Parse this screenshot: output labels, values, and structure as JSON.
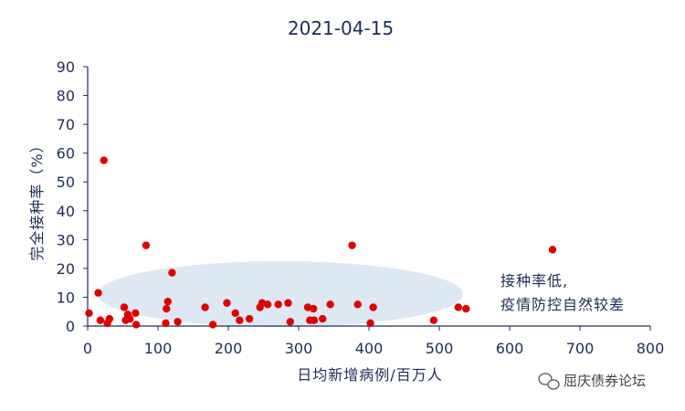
{
  "chart_data": {
    "type": "scatter",
    "title": "2021-04-15",
    "xlabel": "日均新增病例/百万人",
    "ylabel": "完全接种率（%）",
    "xlim": [
      0,
      800
    ],
    "ylim": [
      0,
      90
    ],
    "xticks": [
      "0",
      "100",
      "200",
      "300",
      "400",
      "500",
      "600",
      "700",
      "800"
    ],
    "yticks": [
      "0",
      "10",
      "20",
      "30",
      "40",
      "50",
      "60",
      "70",
      "80",
      "90"
    ],
    "grid": false,
    "legend": "none",
    "annotation": [
      "接种率低,",
      "疫情防控自然较差"
    ],
    "colors": {
      "point": "#e00000",
      "axis": "#1f2d57",
      "highlight": "#dde8f4"
    },
    "points": [
      {
        "x": 2,
        "y": 4.5
      },
      {
        "x": 15,
        "y": 11.5
      },
      {
        "x": 18,
        "y": 2
      },
      {
        "x": 23,
        "y": 57.5
      },
      {
        "x": 28,
        "y": 1
      },
      {
        "x": 31,
        "y": 2.5
      },
      {
        "x": 52,
        "y": 6.5
      },
      {
        "x": 54,
        "y": 2
      },
      {
        "x": 57,
        "y": 4
      },
      {
        "x": 60,
        "y": 2.5
      },
      {
        "x": 68,
        "y": 4.5
      },
      {
        "x": 69,
        "y": 0.5
      },
      {
        "x": 83,
        "y": 28
      },
      {
        "x": 111,
        "y": 1
      },
      {
        "x": 112,
        "y": 6
      },
      {
        "x": 114,
        "y": 8.5
      },
      {
        "x": 120,
        "y": 18.5
      },
      {
        "x": 128,
        "y": 1.5
      },
      {
        "x": 167,
        "y": 6.5
      },
      {
        "x": 178,
        "y": 0.5
      },
      {
        "x": 198,
        "y": 8
      },
      {
        "x": 210,
        "y": 4.5
      },
      {
        "x": 216,
        "y": 2
      },
      {
        "x": 230,
        "y": 2.5
      },
      {
        "x": 245,
        "y": 6.5
      },
      {
        "x": 248,
        "y": 8
      },
      {
        "x": 256,
        "y": 7.5
      },
      {
        "x": 271,
        "y": 7.5
      },
      {
        "x": 285,
        "y": 8
      },
      {
        "x": 288,
        "y": 1.5
      },
      {
        "x": 313,
        "y": 6.5
      },
      {
        "x": 316,
        "y": 2
      },
      {
        "x": 321,
        "y": 6
      },
      {
        "x": 322,
        "y": 2
      },
      {
        "x": 334,
        "y": 2.5
      },
      {
        "x": 345,
        "y": 7.5
      },
      {
        "x": 376,
        "y": 28
      },
      {
        "x": 384,
        "y": 7.5
      },
      {
        "x": 402,
        "y": 1
      },
      {
        "x": 406,
        "y": 6.5
      },
      {
        "x": 492,
        "y": 2
      },
      {
        "x": 527,
        "y": 6.5
      },
      {
        "x": 538,
        "y": 6
      },
      {
        "x": 661,
        "y": 26.5
      }
    ]
  },
  "watermark": {
    "text": "屈庆债券论坛",
    "icon": "wechat-icon"
  }
}
